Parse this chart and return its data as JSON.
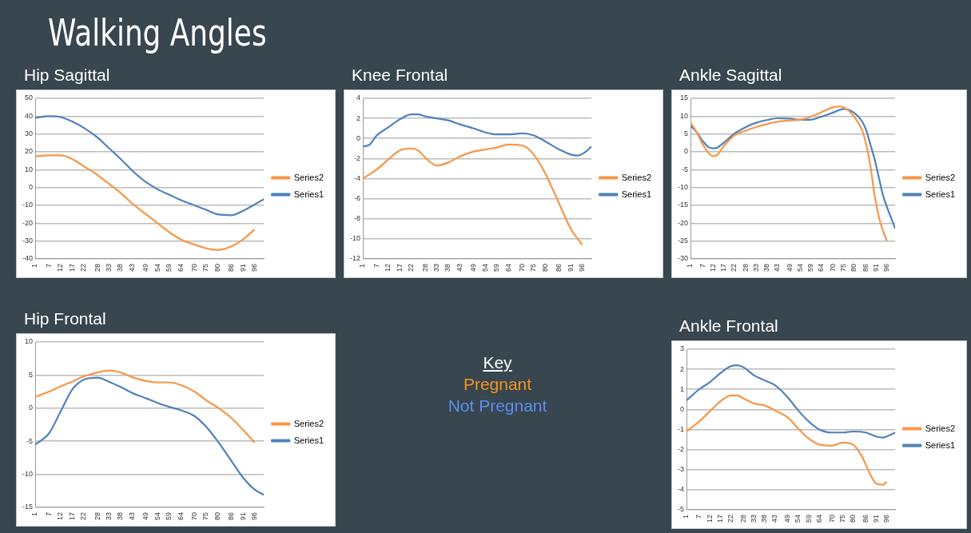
{
  "chart_data": [
    {
      "type": "other",
      "title": "Walking Angles"
    },
    {
      "type": "line",
      "title": "Hip Sagittal",
      "xlim": [
        1,
        100
      ],
      "xticks": [
        1,
        7,
        12,
        17,
        22,
        28,
        33,
        38,
        43,
        49,
        54,
        59,
        64,
        70,
        75,
        80,
        86,
        91,
        96
      ],
      "ylim": [
        -40,
        50
      ],
      "yticks": [
        -40,
        -30,
        -20,
        -10,
        0,
        10,
        20,
        30,
        40,
        50
      ],
      "grid": "y",
      "legend": "right",
      "marker": "none",
      "line_style": "solid",
      "series": [
        {
          "name": "Series2",
          "color": "#f79646",
          "x": [
            1,
            7,
            12,
            17,
            22,
            28,
            33,
            38,
            43,
            49,
            54,
            59,
            64,
            70,
            75,
            80,
            86,
            91,
            96
          ],
          "values": [
            17.5,
            18,
            18,
            16,
            12,
            7,
            2,
            -3,
            -9,
            -15,
            -20,
            -25,
            -29,
            -32,
            -34,
            -35,
            -33,
            -29,
            -23.5
          ]
        },
        {
          "name": "Series1",
          "color": "#4f81bd",
          "x": [
            1,
            7,
            12,
            17,
            22,
            28,
            33,
            38,
            43,
            49,
            54,
            59,
            64,
            70,
            75,
            80,
            86,
            91,
            96,
            100
          ],
          "values": [
            39,
            40,
            39.5,
            37,
            33.5,
            28,
            22,
            16,
            9.5,
            3,
            -1,
            -4,
            -7,
            -10,
            -12.5,
            -15,
            -15.5,
            -13,
            -9.5,
            -6.5
          ]
        }
      ]
    },
    {
      "type": "line",
      "title": "Knee Frontal",
      "xlim": [
        1,
        100
      ],
      "xticks": [
        1,
        7,
        12,
        17,
        22,
        28,
        33,
        38,
        43,
        49,
        54,
        59,
        64,
        70,
        75,
        80,
        86,
        91,
        96
      ],
      "ylim": [
        -12,
        4
      ],
      "yticks": [
        -12,
        -10,
        -8,
        -6,
        -4,
        -2,
        0,
        2,
        4
      ],
      "grid": "y",
      "legend": "right",
      "marker": "none",
      "line_style": "solid",
      "series": [
        {
          "name": "Series2",
          "color": "#f79646",
          "x": [
            1,
            7,
            12,
            17,
            22,
            25,
            28,
            33,
            38,
            43,
            49,
            54,
            59,
            64,
            70,
            75,
            80,
            86,
            91,
            96
          ],
          "values": [
            -4,
            -3.1,
            -2.1,
            -1.2,
            -1,
            -1.2,
            -1.9,
            -2.7,
            -2.4,
            -1.8,
            -1.3,
            -1.1,
            -0.9,
            -0.6,
            -0.7,
            -1.6,
            -3.5,
            -6.5,
            -9,
            -10.6
          ]
        },
        {
          "name": "Series1",
          "color": "#4f81bd",
          "x": [
            1,
            4,
            7,
            12,
            17,
            22,
            25,
            28,
            33,
            38,
            43,
            49,
            54,
            59,
            64,
            70,
            75,
            80,
            86,
            91,
            94,
            97,
            100
          ],
          "values": [
            -0.8,
            -0.6,
            0.3,
            1.1,
            1.9,
            2.4,
            2.4,
            2.2,
            2,
            1.8,
            1.4,
            1,
            0.6,
            0.4,
            0.4,
            0.5,
            0.3,
            -0.3,
            -1.1,
            -1.6,
            -1.7,
            -1.4,
            -0.8
          ]
        }
      ]
    },
    {
      "type": "line",
      "title": "Ankle Sagittal",
      "xlim": [
        1,
        100
      ],
      "xticks": [
        1,
        7,
        12,
        17,
        22,
        28,
        33,
        38,
        43,
        49,
        54,
        59,
        64,
        70,
        75,
        80,
        86,
        91,
        96
      ],
      "ylim": [
        -30,
        15
      ],
      "yticks": [
        -30,
        -25,
        -20,
        -15,
        -10,
        -5,
        0,
        5,
        10,
        15
      ],
      "grid": "y",
      "legend": "right",
      "marker": "none",
      "line_style": "solid",
      "series": [
        {
          "name": "Series2",
          "color": "#f79646",
          "x": [
            1,
            4,
            7,
            10,
            12,
            14,
            17,
            22,
            28,
            33,
            38,
            43,
            49,
            54,
            59,
            64,
            70,
            73,
            75,
            80,
            84,
            86,
            88,
            90,
            92,
            94,
            96
          ],
          "values": [
            8.2,
            5.5,
            2,
            -0.5,
            -1.2,
            -0.8,
            1.5,
            4.5,
            6,
            7,
            7.8,
            8.4,
            8.8,
            9,
            9.8,
            11,
            12.5,
            12.7,
            12.5,
            10,
            6,
            2,
            -4,
            -12,
            -18,
            -22,
            -25
          ]
        },
        {
          "name": "Series1",
          "color": "#4f81bd",
          "x": [
            1,
            4,
            7,
            10,
            12,
            14,
            17,
            22,
            28,
            33,
            38,
            43,
            49,
            54,
            59,
            64,
            70,
            75,
            80,
            84,
            86,
            88,
            90,
            92,
            94,
            97,
            100
          ],
          "values": [
            7.3,
            5.5,
            3,
            1.2,
            1,
            1.2,
            2.5,
            5,
            7,
            8.2,
            8.9,
            9.4,
            9.3,
            9,
            9,
            9.8,
            11,
            12,
            11,
            8.5,
            6,
            2,
            -2,
            -7,
            -12,
            -17,
            -21.5
          ]
        }
      ]
    },
    {
      "type": "line",
      "title": "Hip Frontal",
      "xlim": [
        1,
        100
      ],
      "xticks": [
        1,
        7,
        12,
        17,
        22,
        28,
        33,
        38,
        43,
        49,
        54,
        59,
        64,
        70,
        75,
        80,
        86,
        91,
        96
      ],
      "ylim": [
        -15,
        10
      ],
      "yticks": [
        -15,
        -10,
        -5,
        0,
        5,
        10
      ],
      "grid": "y",
      "legend": "right",
      "marker": "none",
      "line_style": "solid",
      "series": [
        {
          "name": "Series2",
          "color": "#f79646",
          "x": [
            1,
            7,
            12,
            17,
            22,
            28,
            33,
            38,
            43,
            49,
            54,
            59,
            64,
            70,
            75,
            80,
            86,
            91,
            96
          ],
          "values": [
            1.7,
            2.5,
            3.3,
            4,
            4.8,
            5.4,
            5.7,
            5.4,
            4.7,
            4.1,
            3.9,
            3.9,
            3.5,
            2.5,
            1.2,
            0.1,
            -1.5,
            -3.3,
            -5.2
          ]
        },
        {
          "name": "Series1",
          "color": "#4f81bd",
          "x": [
            1,
            7,
            12,
            17,
            22,
            28,
            33,
            38,
            43,
            49,
            54,
            59,
            64,
            70,
            75,
            80,
            86,
            91,
            96,
            100
          ],
          "values": [
            -5.5,
            -3.8,
            -0.5,
            2.8,
            4.3,
            4.6,
            4,
            3.2,
            2.3,
            1.5,
            0.8,
            0.2,
            -0.3,
            -1.2,
            -2.8,
            -5,
            -8,
            -10.5,
            -12.3,
            -13.1
          ]
        }
      ]
    },
    {
      "type": "other",
      "title": "Key",
      "series": [
        {
          "name": "Pregnant",
          "color": "#f7941d"
        },
        {
          "name": "Not Pregnant",
          "color": "#5b8ff0"
        }
      ]
    },
    {
      "type": "line",
      "title": "Ankle Frontal",
      "xlim": [
        1,
        100
      ],
      "xticks": [
        1,
        7,
        12,
        17,
        22,
        28,
        33,
        38,
        43,
        49,
        54,
        59,
        64,
        70,
        75,
        80,
        86,
        91,
        96
      ],
      "ylim": [
        -5,
        3
      ],
      "yticks": [
        -5,
        -4,
        -3,
        -2,
        -1,
        0,
        1,
        2,
        3
      ],
      "grid": "y",
      "legend": "right",
      "marker": "none",
      "line_style": "solid",
      "series": [
        {
          "name": "Series2",
          "color": "#f79646",
          "x": [
            1,
            7,
            12,
            17,
            22,
            25,
            28,
            33,
            38,
            43,
            49,
            54,
            59,
            64,
            70,
            75,
            80,
            84,
            88,
            91,
            94,
            96
          ],
          "values": [
            -1.1,
            -0.6,
            -0.1,
            0.4,
            0.7,
            0.7,
            0.55,
            0.3,
            0.2,
            -0.05,
            -0.4,
            -0.95,
            -1.45,
            -1.75,
            -1.8,
            -1.65,
            -1.75,
            -2.3,
            -3.2,
            -3.7,
            -3.75,
            -3.6
          ]
        },
        {
          "name": "Series1",
          "color": "#4f81bd",
          "x": [
            1,
            7,
            12,
            17,
            22,
            25,
            28,
            33,
            38,
            43,
            49,
            54,
            59,
            64,
            70,
            75,
            80,
            86,
            91,
            94,
            97,
            100
          ],
          "values": [
            0.45,
            1,
            1.35,
            1.8,
            2.15,
            2.2,
            2.1,
            1.7,
            1.45,
            1.2,
            0.6,
            -0.05,
            -0.6,
            -1,
            -1.15,
            -1.15,
            -1.1,
            -1.15,
            -1.35,
            -1.4,
            -1.3,
            -1.15
          ]
        }
      ]
    }
  ]
}
